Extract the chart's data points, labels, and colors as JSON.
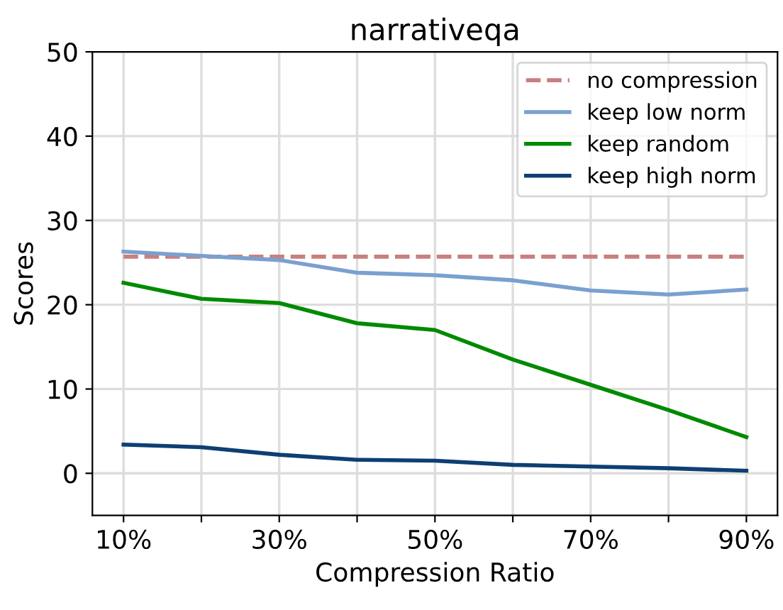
{
  "chart_data": {
    "type": "line",
    "title": "narrativeqa",
    "xlabel": "Compression Ratio",
    "ylabel": "Scores",
    "x": [
      10,
      20,
      30,
      40,
      50,
      60,
      70,
      80,
      90
    ],
    "series": [
      {
        "name": "no compression",
        "color": "#c97f7f",
        "line_style": "dashed",
        "values": [
          25.7,
          25.7,
          25.7,
          25.7,
          25.7,
          25.7,
          25.7,
          25.7,
          25.7
        ]
      },
      {
        "name": "keep low norm",
        "color": "#7aa0d0",
        "line_style": "solid",
        "values": [
          26.3,
          25.8,
          25.3,
          23.8,
          23.5,
          22.9,
          21.7,
          21.2,
          21.8
        ]
      },
      {
        "name": "keep random",
        "color": "#008a00",
        "line_style": "solid",
        "values": [
          22.6,
          20.7,
          20.2,
          17.8,
          17.0,
          13.5,
          10.5,
          7.5,
          4.3
        ]
      },
      {
        "name": "keep high norm",
        "color": "#0d3f73",
        "line_style": "solid",
        "values": [
          3.4,
          3.1,
          2.2,
          1.6,
          1.5,
          1.0,
          0.8,
          0.6,
          0.3
        ]
      }
    ],
    "xlim": [
      6,
      94
    ],
    "ylim": [
      -5,
      50
    ],
    "xticks": [
      {
        "value": 10,
        "label": "10%"
      },
      {
        "value": 20,
        "label": null
      },
      {
        "value": 30,
        "label": "30%"
      },
      {
        "value": 40,
        "label": null
      },
      {
        "value": 50,
        "label": "50%"
      },
      {
        "value": 60,
        "label": null
      },
      {
        "value": 70,
        "label": "70%"
      },
      {
        "value": 80,
        "label": null
      },
      {
        "value": 90,
        "label": "90%"
      }
    ],
    "yticks": [
      0,
      10,
      20,
      30,
      40,
      50
    ],
    "grid": true,
    "legend": "top right"
  }
}
